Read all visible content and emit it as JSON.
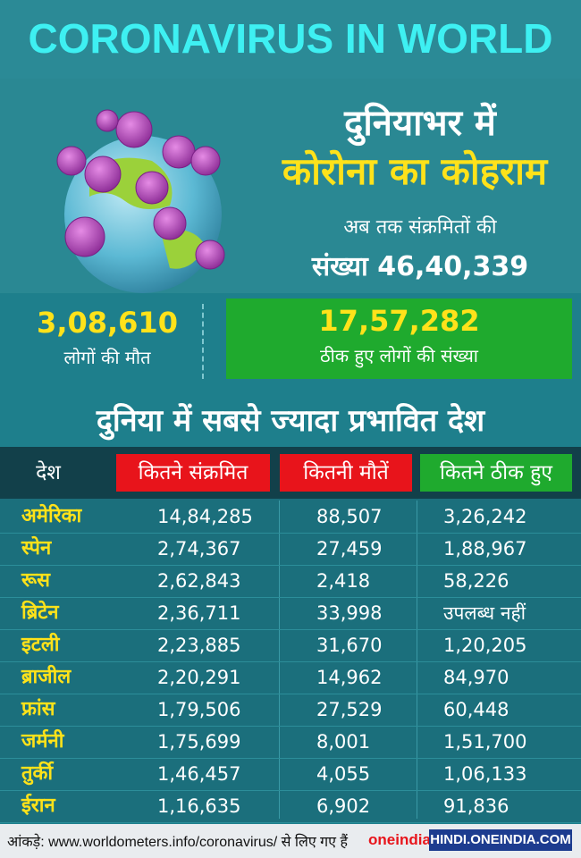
{
  "header": {
    "title": "CORONAVIRUS IN WORLD"
  },
  "hero": {
    "title_line1": "दुनियाभर में",
    "title_line2": "कोरोना का कोहराम",
    "infected_label": "अब तक संक्रमितों की",
    "infected_value": "संख्या 46,40,339"
  },
  "summary": {
    "deaths_value": "3,08,610",
    "deaths_label": "लोगों की मौत",
    "recovered_value": "17,57,282",
    "recovered_label": "ठीक हुए लोगों की संख्या"
  },
  "section_title": "दुनिया में सबसे ज्यादा प्रभावित देश",
  "table": {
    "headers": {
      "country": "देश",
      "infected": "कितने संक्रमित",
      "deaths": "कितनी मौतें",
      "recovered": "कितने ठीक हुए"
    },
    "rows": [
      {
        "country": "अमेरिका",
        "infected": "14,84,285",
        "deaths": "88,507",
        "recovered": "3,26,242"
      },
      {
        "country": "स्पेन",
        "infected": "2,74,367",
        "deaths": "27,459",
        "recovered": "1,88,967"
      },
      {
        "country": "रूस",
        "infected": "2,62,843",
        "deaths": "2,418",
        "recovered": "58,226"
      },
      {
        "country": "ब्रिटेन",
        "infected": "2,36,711",
        "deaths": "33,998",
        "recovered": "उपलब्ध नहीं"
      },
      {
        "country": "इटली",
        "infected": "2,23,885",
        "deaths": "31,670",
        "recovered": "1,20,205"
      },
      {
        "country": "ब्राजील",
        "infected": "2,20,291",
        "deaths": "14,962",
        "recovered": "84,970"
      },
      {
        "country": "फ्रांस",
        "infected": "1,79,506",
        "deaths": "27,529",
        "recovered": "60,448"
      },
      {
        "country": "जर्मनी",
        "infected": "1,75,699",
        "deaths": "8,001",
        "recovered": "1,51,700"
      },
      {
        "country": "तुर्की",
        "infected": "1,46,457",
        "deaths": "4,055",
        "recovered": "1,06,133"
      },
      {
        "country": "ईरान",
        "infected": "1,16,635",
        "deaths": "6,902",
        "recovered": "91,836"
      }
    ]
  },
  "footer": {
    "source": "आंकड़े: www.worldometers.info/coronavirus/ से लिए गए हैं",
    "brand": "oneindia",
    "site": "HINDI.ONEINDIA.COM"
  },
  "colors": {
    "background": "#1e7f8c",
    "title_cyan": "#3ef0f2",
    "highlight_yellow": "#ffe21a",
    "infected_red": "#e8141b",
    "recovered_green": "#1faa2e",
    "table_header": "#12404a",
    "brand_blue": "#1d3c8f"
  },
  "icons": {
    "hero_illustration": "virus-globe-illustration"
  }
}
